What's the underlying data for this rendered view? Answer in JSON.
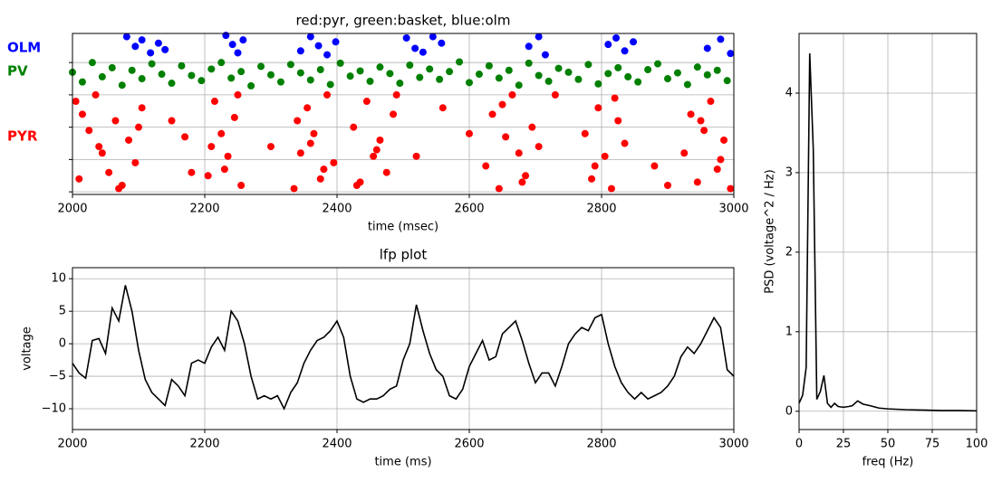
{
  "chart_data": [
    {
      "type": "scatter",
      "title": "red:pyr, green:basket, blue:olm",
      "xlabel": "time (msec)",
      "xlim": [
        2000,
        3000
      ],
      "xticks": [
        2000,
        2200,
        2400,
        2600,
        2800,
        3000
      ],
      "ylim": [
        -4,
        245
      ],
      "yticks": [
        0,
        50,
        100,
        150,
        200
      ],
      "show_ytick_labels": false,
      "grid": true,
      "series": [
        {
          "name": "PYR",
          "color": "#ff0000",
          "x": [
            2005,
            2015,
            2025,
            2035,
            2045,
            2055,
            2065,
            2075,
            2085,
            2095,
            2105,
            2010,
            2040,
            2070,
            2100,
            2205,
            2215,
            2225,
            2235,
            2245,
            2255,
            2210,
            2230,
            2250,
            2335,
            2345,
            2355,
            2365,
            2375,
            2385,
            2395,
            2340,
            2360,
            2380,
            2425,
            2435,
            2445,
            2455,
            2465,
            2475,
            2485,
            2430,
            2460,
            2490,
            2625,
            2635,
            2645,
            2655,
            2665,
            2675,
            2685,
            2695,
            2705,
            2650,
            2680,
            2775,
            2785,
            2795,
            2805,
            2815,
            2825,
            2835,
            2790,
            2820,
            2925,
            2935,
            2945,
            2955,
            2965,
            2975,
            2985,
            2995,
            2950,
            2980,
            2150,
            2180,
            2300,
            2520,
            2560,
            2600,
            2730,
            2880,
            2900,
            2170
          ],
          "values": [
            140,
            120,
            95,
            150,
            60,
            30,
            110,
            10,
            80,
            45,
            130,
            20,
            70,
            5,
            100,
            25,
            140,
            90,
            55,
            115,
            10,
            70,
            35,
            150,
            5,
            60,
            130,
            90,
            20,
            150,
            45,
            110,
            75,
            35,
            100,
            15,
            140,
            55,
            80,
            30,
            120,
            10,
            65,
            150,
            40,
            120,
            5,
            85,
            150,
            60,
            25,
            100,
            70,
            135,
            15,
            90,
            20,
            130,
            55,
            5,
            110,
            75,
            40,
            145,
            60,
            120,
            15,
            95,
            140,
            35,
            80,
            5,
            110,
            50,
            110,
            30,
            70,
            55,
            130,
            90,
            150,
            40,
            10,
            85
          ]
        },
        {
          "name": "PV",
          "color": "#008000",
          "x": [
            2000,
            2015,
            2030,
            2045,
            2060,
            2075,
            2090,
            2105,
            2120,
            2135,
            2150,
            2165,
            2180,
            2195,
            2210,
            2225,
            2240,
            2255,
            2270,
            2285,
            2300,
            2315,
            2330,
            2345,
            2360,
            2375,
            2390,
            2405,
            2420,
            2435,
            2450,
            2465,
            2480,
            2495,
            2510,
            2525,
            2540,
            2555,
            2570,
            2585,
            2600,
            2615,
            2630,
            2645,
            2660,
            2675,
            2690,
            2705,
            2720,
            2735,
            2750,
            2765,
            2780,
            2795,
            2810,
            2825,
            2840,
            2855,
            2870,
            2885,
            2900,
            2915,
            2930,
            2945,
            2960,
            2975,
            2990
          ],
          "values": [
            185,
            170,
            200,
            178,
            192,
            165,
            188,
            175,
            198,
            182,
            168,
            195,
            180,
            172,
            190,
            200,
            176,
            186,
            164,
            194,
            181,
            170,
            197,
            184,
            173,
            189,
            166,
            199,
            179,
            187,
            171,
            193,
            183,
            168,
            196,
            177,
            190,
            174,
            186,
            201,
            169,
            182,
            195,
            176,
            188,
            165,
            199,
            180,
            171,
            191,
            185,
            174,
            197,
            167,
            183,
            192,
            178,
            170,
            189,
            198,
            175,
            184,
            166,
            193,
            181,
            188,
            172
          ]
        },
        {
          "name": "OLM",
          "color": "#0000ff",
          "x": [
            2082,
            2095,
            2105,
            2118,
            2130,
            2140,
            2232,
            2242,
            2250,
            2258,
            2345,
            2360,
            2372,
            2385,
            2398,
            2505,
            2518,
            2530,
            2545,
            2558,
            2690,
            2705,
            2715,
            2810,
            2822,
            2835,
            2848,
            2960,
            2980,
            2995
          ],
          "values": [
            240,
            225,
            235,
            215,
            230,
            220,
            242,
            228,
            215,
            235,
            218,
            240,
            226,
            212,
            232,
            238,
            222,
            216,
            240,
            230,
            225,
            240,
            212,
            228,
            238,
            218,
            232,
            222,
            236,
            214
          ]
        }
      ]
    },
    {
      "type": "line",
      "title": "lfp plot",
      "xlabel": "time (ms)",
      "ylabel": "voltage",
      "xlim": [
        2000,
        3000
      ],
      "xticks": [
        2000,
        2200,
        2400,
        2600,
        2800,
        3000
      ],
      "ylim": [
        -13.2,
        11.7
      ],
      "yticks": [
        {
          "value": -10,
          "label": "−10"
        },
        {
          "value": -5,
          "label": "−5"
        },
        0,
        5,
        10
      ],
      "grid": true,
      "color": "#000000",
      "x": [
        2000,
        2010,
        2020,
        2030,
        2040,
        2050,
        2060,
        2070,
        2080,
        2090,
        2100,
        2110,
        2120,
        2130,
        2140,
        2150,
        2160,
        2170,
        2180,
        2190,
        2200,
        2210,
        2220,
        2230,
        2240,
        2250,
        2260,
        2270,
        2280,
        2290,
        2300,
        2310,
        2320,
        2330,
        2340,
        2350,
        2360,
        2370,
        2380,
        2390,
        2400,
        2410,
        2420,
        2430,
        2440,
        2450,
        2460,
        2470,
        2480,
        2490,
        2500,
        2510,
        2520,
        2530,
        2540,
        2550,
        2560,
        2570,
        2580,
        2590,
        2600,
        2610,
        2620,
        2630,
        2640,
        2650,
        2660,
        2670,
        2680,
        2690,
        2700,
        2710,
        2720,
        2730,
        2740,
        2750,
        2760,
        2770,
        2780,
        2790,
        2800,
        2810,
        2820,
        2830,
        2840,
        2850,
        2860,
        2870,
        2880,
        2890,
        2900,
        2910,
        2920,
        2930,
        2940,
        2950,
        2960,
        2970,
        2980,
        2990,
        3000
      ],
      "values": [
        -3,
        -4.5,
        -5.3,
        0.5,
        0.8,
        -1.5,
        5.5,
        3.5,
        9,
        5,
        -1,
        -5.5,
        -7.5,
        -8.5,
        -9.5,
        -5.5,
        -6.5,
        -8,
        -3,
        -2.5,
        -3,
        -0.5,
        1,
        -1,
        5,
        3.5,
        0,
        -5,
        -8.5,
        -8,
        -8.5,
        -8,
        -10,
        -7.5,
        -6,
        -3,
        -1,
        0.5,
        1,
        2,
        3.5,
        1,
        -5,
        -8.5,
        -9,
        -8.5,
        -8.5,
        -8,
        -7,
        -6.5,
        -2.5,
        0,
        6,
        2,
        -1.5,
        -4,
        -5,
        -8,
        -8.5,
        -7,
        -3.5,
        -1.5,
        0.5,
        -2.5,
        -2,
        1.5,
        2.5,
        3.5,
        0.5,
        -3,
        -6,
        -4.5,
        -4.5,
        -6.5,
        -3.5,
        0,
        1.5,
        2.5,
        2,
        4,
        4.5,
        0,
        -3.5,
        -6,
        -7.5,
        -8.5,
        -7.5,
        -8.5,
        -8,
        -7.5,
        -6.5,
        -5,
        -2,
        -0.5,
        -1.5,
        0,
        2,
        4,
        2.5,
        -4,
        -5
      ]
    },
    {
      "type": "line",
      "xlabel": "freq (Hz)",
      "ylabel": "PSD (voltage^2 / Hz)",
      "xlim": [
        0,
        100
      ],
      "xticks": [
        0,
        25,
        50,
        75,
        100
      ],
      "ylim": [
        -0.23,
        4.75
      ],
      "yticks": [
        0,
        1,
        2,
        3,
        4
      ],
      "grid": true,
      "color": "#000000",
      "x": [
        0,
        2,
        4,
        6,
        8,
        10,
        12,
        14,
        16,
        18,
        20,
        22,
        25,
        28,
        30,
        33,
        36,
        40,
        45,
        50,
        60,
        70,
        80,
        90,
        100
      ],
      "values": [
        0.1,
        0.2,
        0.55,
        4.5,
        3.3,
        0.15,
        0.25,
        0.45,
        0.1,
        0.05,
        0.1,
        0.06,
        0.05,
        0.06,
        0.07,
        0.13,
        0.09,
        0.07,
        0.04,
        0.03,
        0.02,
        0.015,
        0.01,
        0.01,
        0.005
      ]
    }
  ]
}
